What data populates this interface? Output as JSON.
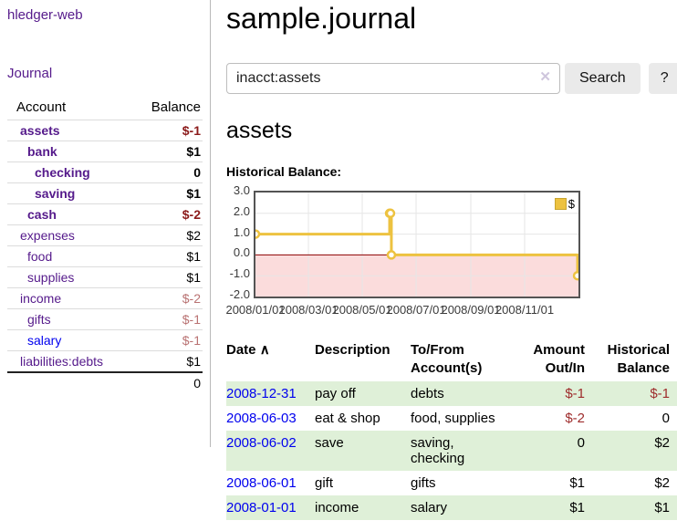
{
  "app": {
    "brand": "hledger-web"
  },
  "sidebar": {
    "nav_journal": "Journal",
    "accounts_table": {
      "headers": [
        "Account",
        "Balance"
      ],
      "rows": [
        {
          "name": "assets",
          "depth": 1,
          "bold": true,
          "balance": "$-1",
          "balance_style": "neg-strong"
        },
        {
          "name": "bank",
          "depth": 2,
          "bold": true,
          "balance": "$1",
          "balance_style": "pos-strong"
        },
        {
          "name": "checking",
          "depth": 3,
          "bold": true,
          "balance": "0",
          "balance_style": "pos-strong"
        },
        {
          "name": "saving",
          "depth": 3,
          "bold": true,
          "balance": "$1",
          "balance_style": "pos-strong"
        },
        {
          "name": "cash",
          "depth": 2,
          "bold": true,
          "balance": "$-2",
          "balance_style": "neg-strong"
        },
        {
          "name": "expenses",
          "depth": 1,
          "bold": false,
          "balance": "$2",
          "balance_style": "pos"
        },
        {
          "name": "food",
          "depth": 2,
          "bold": false,
          "balance": "$1",
          "balance_style": "pos"
        },
        {
          "name": "supplies",
          "depth": 2,
          "bold": false,
          "balance": "$1",
          "balance_style": "pos"
        },
        {
          "name": "income",
          "depth": 1,
          "bold": false,
          "balance": "$-2",
          "balance_style": "neg-soft"
        },
        {
          "name": "gifts",
          "depth": 2,
          "bold": false,
          "balance": "$-1",
          "balance_style": "neg-soft"
        },
        {
          "name": "salary",
          "depth": 2,
          "bold": false,
          "link_style": "unvisited",
          "balance": "$-1",
          "balance_style": "neg-soft"
        },
        {
          "name": "liabilities:debts",
          "depth": 1,
          "bold": false,
          "balance": "$1",
          "balance_style": "pos"
        }
      ],
      "total": "0"
    }
  },
  "header": {
    "title": "sample.journal"
  },
  "search": {
    "value": "inacct:assets",
    "clear_icon": "✕",
    "button_label": "Search",
    "help_label": "?"
  },
  "account_page": {
    "title": "assets",
    "chart_label": "Historical Balance:"
  },
  "chart_data": {
    "type": "line",
    "mode": "step",
    "title": "Historical Balance",
    "series": [
      {
        "name": "$",
        "points": [
          [
            "2008-01-01",
            1
          ],
          [
            "2008-06-01",
            2
          ],
          [
            "2008-06-02",
            2
          ],
          [
            "2008-06-03",
            0
          ],
          [
            "2008-12-31",
            -1
          ]
        ]
      }
    ],
    "ylim": [
      -2,
      3
    ],
    "y_ticks": [
      3.0,
      2.0,
      1.0,
      0.0,
      -1.0,
      -2.0
    ],
    "x_ticks": [
      "2008/01/01",
      "2008/03/01",
      "2008/05/01",
      "2008/07/01",
      "2008/09/01",
      "2008/11/01"
    ],
    "x_range": [
      "2008-01-01",
      "2009-01-01"
    ],
    "grid": true,
    "legend": {
      "position": "top-right"
    },
    "colors": {
      "series": "#edc240",
      "marker_fill": "#ffffff",
      "negative_region": "#fbdcdc",
      "zero_line": "#8b0000",
      "grid": "#e6e6e6",
      "plot_border": "#545454",
      "legend_box_border": "#c9a52f"
    }
  },
  "register": {
    "headers": [
      {
        "label": "Date",
        "sort_indicator": "∧"
      },
      {
        "label": "Description"
      },
      {
        "label": "To/From Account(s)"
      },
      {
        "label": "Amount Out/In"
      },
      {
        "label": "Historical Balance"
      }
    ],
    "rows": [
      {
        "date": "2008-12-31",
        "description": "pay off",
        "accounts": "debts",
        "amount": "$-1",
        "amount_negative": true,
        "balance": "$-1",
        "balance_negative": true
      },
      {
        "date": "2008-06-03",
        "description": "eat & shop",
        "accounts": "food, supplies",
        "amount": "$-2",
        "amount_negative": true,
        "balance": "0",
        "balance_negative": false
      },
      {
        "date": "2008-06-02",
        "description": "save",
        "accounts": "saving, checking",
        "amount": "0",
        "amount_negative": false,
        "balance": "$2",
        "balance_negative": false
      },
      {
        "date": "2008-06-01",
        "description": "gift",
        "accounts": "gifts",
        "amount": "$1",
        "amount_negative": false,
        "balance": "$2",
        "balance_negative": false
      },
      {
        "date": "2008-01-01",
        "description": "income",
        "accounts": "salary",
        "amount": "$1",
        "amount_negative": false,
        "balance": "$1",
        "balance_negative": false
      }
    ]
  },
  "colors": {
    "link_visited_purple": "#551a8b",
    "link_blue": "#0000ee",
    "negative_strong": "#8b1a1a",
    "negative_soft": "#b97272",
    "negative_register": "#9e2c2c",
    "row_shade_green": "#dff0d8"
  }
}
